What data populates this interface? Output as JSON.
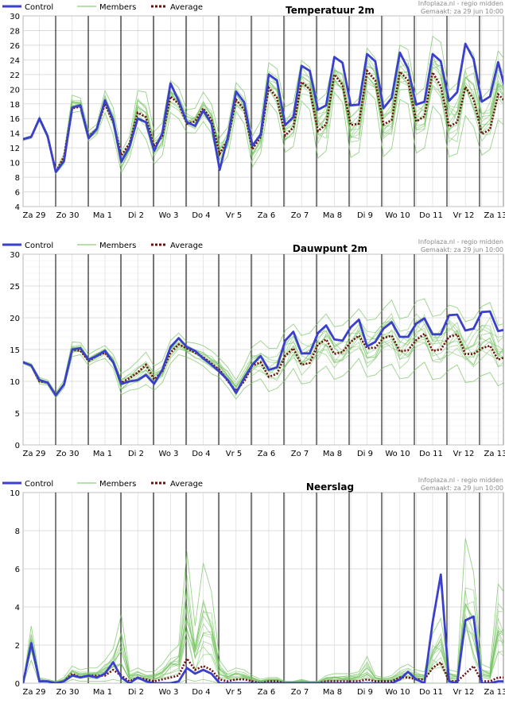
{
  "legend": {
    "control": "Control",
    "members": "Members",
    "average": "Average"
  },
  "source": "Infoplaza.nl - regio midden",
  "made": "Gemaakt: za 29 jun 10:00",
  "colors": {
    "control": "#3a3fcc",
    "members": "#6fbf5a",
    "average": "#6e0f0f",
    "grid": "#d4d4d4",
    "divider": "#000000"
  },
  "days": [
    "Za 29",
    "Zo 30",
    "Ma 1",
    "Di 2",
    "Wo 3",
    "Do 4",
    "Vr 5",
    "Za 6",
    "Zo 7",
    "Ma 8",
    "Di 9",
    "Wo 10",
    "Do 11",
    "Vr 12",
    "Za 13"
  ],
  "chart_data": [
    {
      "type": "line",
      "title": "Temperatuur 2m",
      "ylim": [
        4,
        30
      ],
      "yticks": [
        4,
        6,
        8,
        10,
        12,
        14,
        16,
        18,
        20,
        22,
        24,
        26,
        28,
        30
      ],
      "x_step": "6h",
      "series": [
        {
          "name": "Control",
          "values": [
            13.2,
            13.5,
            16,
            13.6,
            8.7,
            10.2,
            17.5,
            17.8,
            13.3,
            14.6,
            18.5,
            15.8,
            10.1,
            12.2,
            16,
            15.5,
            11.6,
            14,
            20.8,
            18.4,
            15.5,
            15,
            17.1,
            15.3,
            9,
            13.5,
            19.7,
            18.2,
            12.3,
            13.8,
            22,
            21.2,
            15.1,
            16.2,
            23.2,
            22.5,
            17.2,
            17.8,
            24.4,
            23.6,
            17.8,
            17.9,
            24.8,
            23.8,
            17.4,
            18.8,
            25,
            22.8,
            17.9,
            18.3,
            24.8,
            23.8,
            18.4,
            19.6,
            26.2,
            24.1,
            18.3,
            19,
            23.7,
            19.4
          ]
        },
        {
          "name": "Average",
          "values": [
            13.2,
            13.5,
            16,
            13.6,
            8.7,
            10.8,
            17.4,
            17.6,
            13.5,
            14.6,
            18,
            15.5,
            11,
            12.6,
            16.8,
            16.2,
            12.2,
            13.6,
            19,
            18,
            15.3,
            15.6,
            17.4,
            15.8,
            11.2,
            13.2,
            18.6,
            17.2,
            11.8,
            13.5,
            20.2,
            18.8,
            13.7,
            14.8,
            21,
            20,
            14.3,
            15.2,
            22,
            20.6,
            15.1,
            15.3,
            22.5,
            21.2,
            15.2,
            15.8,
            22.4,
            21.2,
            15.6,
            16.3,
            22.3,
            20.4,
            14.9,
            15.5,
            20.3,
            18.6,
            13.9,
            14.5,
            19.3,
            18.2
          ]
        }
      ],
      "members_range": {
        "low": [
          13,
          13.3,
          15.7,
          13.3,
          8.5,
          9.8,
          16.8,
          17,
          12.9,
          13.8,
          16.8,
          13.8,
          8.6,
          10.6,
          14.8,
          13.2,
          9.8,
          11,
          16.8,
          16,
          14.1,
          14,
          15.6,
          14,
          9.4,
          10.9,
          17,
          15.3,
          9.4,
          11.2,
          18.2,
          16.8,
          11.4,
          12.2,
          18.4,
          17.2,
          10.6,
          11.6,
          19.6,
          18.2,
          10.7,
          11.4,
          19.8,
          18.6,
          10.8,
          11.9,
          18.6,
          18,
          11.3,
          12,
          17.7,
          16.4,
          10.8,
          11.2,
          16.4,
          14.9,
          11,
          11.8,
          15.8,
          14.8
        ],
        "high": [
          13.3,
          13.7,
          16.3,
          13.9,
          8.9,
          11.3,
          19.2,
          18.8,
          14.3,
          15.2,
          19.8,
          17.5,
          11.5,
          13.6,
          19.8,
          19.6,
          14.2,
          15.4,
          21.2,
          20.2,
          17.2,
          17.4,
          19.6,
          18,
          13.4,
          14.8,
          20.9,
          19.6,
          13.6,
          15.6,
          23.6,
          22.8,
          17.6,
          18.2,
          23.9,
          23,
          18.4,
          19.4,
          24.4,
          23.8,
          17.6,
          18.8,
          25.6,
          24.2,
          18.2,
          19.4,
          26,
          25.4,
          19.2,
          20.2,
          27.2,
          26.4,
          19.8,
          20.8,
          26,
          24.8,
          18.8,
          20,
          25.2,
          23.8
        ]
      }
    },
    {
      "type": "line",
      "title": "Dauwpunt 2m",
      "ylim": [
        0,
        30
      ],
      "yticks": [
        0,
        5,
        10,
        15,
        20,
        25,
        30
      ],
      "x_step": "6h",
      "series": [
        {
          "name": "Control",
          "values": [
            13,
            12.5,
            10.2,
            9.8,
            7.8,
            9.5,
            15,
            15.2,
            13.4,
            14,
            14.8,
            13,
            9.6,
            10,
            10.2,
            11,
            9.6,
            11.8,
            15.4,
            16.8,
            15.4,
            14.8,
            13.6,
            12.6,
            11.5,
            10.2,
            8.2,
            10.5,
            12.6,
            14,
            11.8,
            12.2,
            16.4,
            17.8,
            14.4,
            14.4,
            17.6,
            18.8,
            16.6,
            16.4,
            18.5,
            19.7,
            15.5,
            16.2,
            18.3,
            19.3,
            17,
            17,
            19.1,
            19.9,
            17.4,
            17.4,
            20.4,
            20.5,
            18,
            18.3,
            20.9,
            21,
            17.9,
            18.2,
            19,
            17
          ]
        },
        {
          "name": "Average",
          "values": [
            13,
            12.5,
            10,
            9.8,
            7.8,
            9.5,
            15,
            14.8,
            13.2,
            14,
            14.5,
            13,
            9.8,
            10.5,
            11.4,
            12.6,
            10.3,
            11.6,
            14.5,
            15.8,
            15.2,
            14.5,
            13.8,
            12.8,
            11.8,
            10,
            8.5,
            10,
            12.5,
            13,
            10.7,
            11.2,
            14,
            15.2,
            12.6,
            12.9,
            15.8,
            16.6,
            14.3,
            14.6,
            16.2,
            17.2,
            15.2,
            15.3,
            16.8,
            17.2,
            14.7,
            14.9,
            16.5,
            17.5,
            14.8,
            15,
            17,
            17.4,
            14.3,
            14.3,
            15.2,
            15.6,
            13.4,
            13.9,
            15.1,
            15
          ]
        }
      ],
      "members_range": {
        "low": [
          12.8,
          12.2,
          9.6,
          9.4,
          7.4,
          9,
          13.9,
          14.2,
          12.5,
          13.2,
          13.6,
          12.1,
          7.9,
          8.6,
          8.8,
          9.5,
          8.6,
          9.8,
          12.8,
          14.2,
          13.8,
          13.2,
          12.4,
          11.2,
          10.6,
          9,
          7.2,
          8.9,
          9.8,
          10.4,
          8.4,
          8.9,
          10.2,
          12,
          9.6,
          9.8,
          11.4,
          12.4,
          10.3,
          10.8,
          12,
          13.6,
          10.7,
          11,
          12.2,
          12.7,
          10.4,
          10.6,
          12,
          13,
          10.3,
          10.5,
          11.8,
          12.6,
          9.8,
          10,
          10.9,
          11.4,
          9.3,
          10,
          11,
          11.2
        ],
        "high": [
          13.2,
          12.8,
          10.6,
          10.2,
          8.2,
          10.2,
          16.2,
          16.1,
          14.2,
          15,
          15.6,
          14.2,
          11.2,
          12,
          13.2,
          14.6,
          12.4,
          13.2,
          16.4,
          17.6,
          16.2,
          16,
          15.6,
          14.8,
          13.6,
          12.2,
          10.2,
          12.5,
          15.4,
          16.4,
          15.2,
          15.2,
          18,
          19,
          17.2,
          17.6,
          19.2,
          20.6,
          18.6,
          18.8,
          20,
          21.4,
          19.6,
          19.8,
          21.4,
          22.8,
          19.8,
          20.2,
          22.6,
          23,
          20.2,
          20.5,
          22,
          21.6,
          19.4,
          19.8,
          21.8,
          22.4,
          18.8,
          19.2,
          20.2,
          19.4
        ]
      }
    },
    {
      "type": "line",
      "title": "Neerslag",
      "ylim": [
        0,
        10
      ],
      "yticks": [
        0,
        2,
        4,
        6,
        8,
        10
      ],
      "x_step": "6h",
      "series": [
        {
          "name": "Control",
          "values": [
            0,
            2.1,
            0.1,
            0.1,
            0,
            0.1,
            0.4,
            0.3,
            0.4,
            0.3,
            0.5,
            1.1,
            0.3,
            0,
            0.3,
            0.1,
            0,
            0,
            0,
            0.1,
            0.8,
            0.5,
            0.7,
            0.5,
            0,
            0,
            0,
            0,
            0,
            0,
            0,
            0,
            0,
            0,
            0,
            0,
            0,
            0,
            0,
            0,
            0,
            0,
            0,
            0,
            0,
            0,
            0.2,
            0.6,
            0.2,
            0,
            3.2,
            5.7,
            0.1,
            0,
            3.3,
            3.5,
            0,
            0,
            0.1,
            0.1,
            0
          ]
        },
        {
          "name": "Average",
          "values": [
            0,
            2.1,
            0.1,
            0.1,
            0,
            0.1,
            0.5,
            0.3,
            0.4,
            0.4,
            0.4,
            0.7,
            0.4,
            0.1,
            0.3,
            0.2,
            0.1,
            0.2,
            0.3,
            0.4,
            1.3,
            0.7,
            0.9,
            0.7,
            0.2,
            0.1,
            0.2,
            0.2,
            0.1,
            0,
            0.1,
            0.1,
            0,
            0,
            0,
            0,
            0,
            0.1,
            0.1,
            0.1,
            0.1,
            0.1,
            0.2,
            0.1,
            0.1,
            0.1,
            0.3,
            0.3,
            0.2,
            0.2,
            0.8,
            1.1,
            0.1,
            0.1,
            0.5,
            0.9,
            0.1,
            0.1,
            0.3,
            0.3,
            0.1
          ]
        }
      ],
      "members_range": {
        "low": [
          0,
          1.2,
          0,
          0,
          0,
          0,
          0.2,
          0.1,
          0.1,
          0.1,
          0.1,
          0.2,
          0.1,
          0,
          0,
          0,
          0,
          0,
          0,
          0,
          0.2,
          0.1,
          0.2,
          0.1,
          0,
          0,
          0,
          0,
          0,
          0,
          0,
          0,
          0,
          0,
          0,
          0,
          0,
          0,
          0,
          0,
          0,
          0,
          0,
          0,
          0,
          0,
          0,
          0,
          0,
          0,
          0,
          0,
          0,
          0,
          0,
          0,
          0,
          0,
          0,
          0,
          0
        ],
        "high": [
          0,
          3,
          0.3,
          0.2,
          0.1,
          0.3,
          0.9,
          0.7,
          0.8,
          0.8,
          1.2,
          1.8,
          3.6,
          0.6,
          0.8,
          0.6,
          0.6,
          1,
          1.6,
          2,
          6.9,
          3,
          6.3,
          4.8,
          1.2,
          0.6,
          0.8,
          0.7,
          0.4,
          0.2,
          0.3,
          0.3,
          0.1,
          0.1,
          0.2,
          0.1,
          0.1,
          0.4,
          0.5,
          0.5,
          0.5,
          0.6,
          1.4,
          0.4,
          0.3,
          0.4,
          0.8,
          1,
          0.7,
          0.6,
          2.6,
          3.4,
          0.7,
          0.6,
          7.6,
          5.8,
          1,
          0.8,
          5.2,
          4.6,
          0.5
        ]
      }
    }
  ]
}
